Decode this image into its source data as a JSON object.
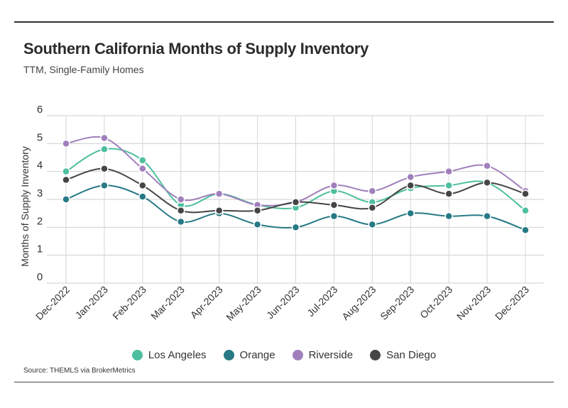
{
  "header": {
    "title": "Southern California Months of Supply Inventory",
    "subtitle": "TTM, Single-Family Homes"
  },
  "footer": {
    "source": "Source:  THEMLS via BrokerMetrics"
  },
  "chart_data": {
    "type": "line",
    "title": "Southern California Months of Supply Inventory",
    "subtitle": "TTM, Single-Family Homes",
    "xlabel": "",
    "ylabel": "Months of Supply Inventory",
    "ylim": [
      0,
      6
    ],
    "yticks": [
      0,
      1,
      2,
      3,
      4,
      5,
      6
    ],
    "grid": true,
    "legend_position": "bottom",
    "categories": [
      "Dec-2022",
      "Jan-2023",
      "Feb-2023",
      "Mar-2023",
      "Apr-2023",
      "May-2023",
      "Jun-2023",
      "Jul-2023",
      "Aug-2023",
      "Sep-2023",
      "Oct-2023",
      "Nov-2023",
      "Dec-2023"
    ],
    "series": [
      {
        "name": "Los Angeles",
        "color": "#4dbf9f",
        "values": [
          4.0,
          4.8,
          4.4,
          2.8,
          3.2,
          2.8,
          2.7,
          3.3,
          2.9,
          3.4,
          3.5,
          3.6,
          2.6
        ]
      },
      {
        "name": "Orange",
        "color": "#277a85",
        "values": [
          3.0,
          3.5,
          3.1,
          2.2,
          2.5,
          2.1,
          2.0,
          2.4,
          2.1,
          2.5,
          2.4,
          2.4,
          1.9
        ]
      },
      {
        "name": "Riverside",
        "color": "#a07fbc",
        "values": [
          5.0,
          5.2,
          4.1,
          3.0,
          3.2,
          2.8,
          2.9,
          3.5,
          3.3,
          3.8,
          4.0,
          4.2,
          3.3
        ]
      },
      {
        "name": "San Diego",
        "color": "#454545",
        "values": [
          3.7,
          4.1,
          3.5,
          2.6,
          2.6,
          2.6,
          2.9,
          2.8,
          2.7,
          3.5,
          3.2,
          3.6,
          3.2
        ]
      }
    ]
  }
}
